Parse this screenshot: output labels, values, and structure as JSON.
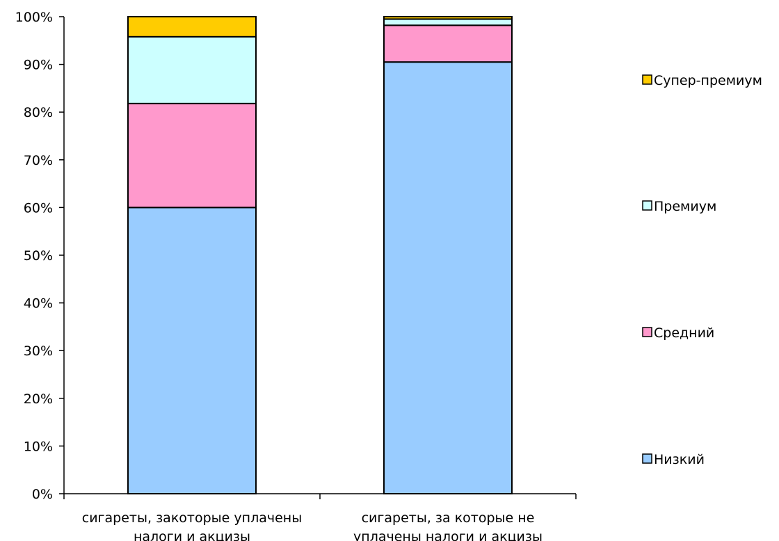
{
  "chart_data": {
    "type": "bar",
    "stacked": true,
    "percent": true,
    "categories": [
      [
        "сигареты, закоторые уплачены",
        "налоги и акцизы"
      ],
      [
        "сигареты, за которые не",
        "уплачены налоги и акцизы"
      ]
    ],
    "series": [
      {
        "name": "Низкий",
        "values": [
          60.0,
          90.5
        ],
        "color": "#99ccff"
      },
      {
        "name": "Средний",
        "values": [
          21.8,
          7.7
        ],
        "color": "#ff99cc"
      },
      {
        "name": "Премиум",
        "values": [
          14.0,
          1.3
        ],
        "color": "#ccffff"
      },
      {
        "name": "Супер-премиум",
        "values": [
          4.2,
          0.5
        ],
        "color": "#ffcc00"
      }
    ],
    "yticks": [
      "0%",
      "10%",
      "20%",
      "30%",
      "40%",
      "50%",
      "60%",
      "70%",
      "80%",
      "90%",
      "100%"
    ],
    "ylim": [
      0,
      100
    ],
    "grid": false,
    "legend": "right",
    "title": "",
    "xlabel": "",
    "ylabel": ""
  }
}
